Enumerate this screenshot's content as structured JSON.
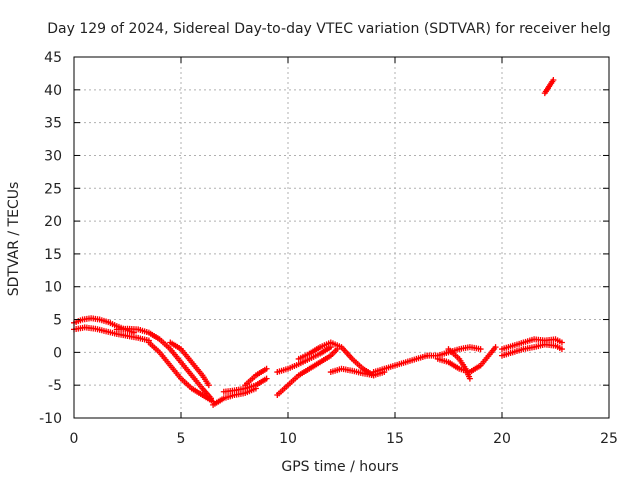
{
  "chart_data": {
    "type": "scatter",
    "title": "Day 129 of 2024, Sidereal Day-to-day VTEC variation (SDTVAR) for receiver helg",
    "xlabel": "GPS time / hours",
    "ylabel": "SDTVAR / TECUs",
    "xlim": [
      0,
      25
    ],
    "ylim": [
      -10,
      45
    ],
    "xticks": [
      0,
      5,
      10,
      15,
      20,
      25
    ],
    "yticks": [
      -10,
      -5,
      0,
      5,
      10,
      15,
      20,
      25,
      30,
      35,
      40,
      45
    ],
    "grid": true,
    "marker": "plus",
    "series": [
      {
        "name": "SDTVAR",
        "color": "#ff0000",
        "tracks": [
          {
            "name": "track-1",
            "x": [
              0,
              0.4,
              0.8,
              1.2,
              1.6,
              2.0,
              2.4,
              2.8
            ],
            "y": [
              4.5,
              5.0,
              5.2,
              5.0,
              4.6,
              4.0,
              3.5,
              3.0
            ]
          },
          {
            "name": "track-2",
            "x": [
              0,
              0.5,
              1.0,
              1.5,
              2.0,
              2.5,
              3.0,
              3.5
            ],
            "y": [
              3.5,
              3.8,
              3.6,
              3.2,
              2.8,
              2.5,
              2.2,
              1.8
            ]
          },
          {
            "name": "track-3",
            "x": [
              2.0,
              2.5,
              3.0,
              3.5,
              4.0,
              4.5,
              5.0,
              5.5,
              6.0,
              6.4
            ],
            "y": [
              3.5,
              3.6,
              3.5,
              3.0,
              2.0,
              0.5,
              -1.5,
              -3.5,
              -5.5,
              -7.0
            ]
          },
          {
            "name": "track-4",
            "x": [
              3.5,
              4.0,
              4.5,
              5.0,
              5.5,
              6.0,
              6.5
            ],
            "y": [
              1.5,
              0.0,
              -2.0,
              -4.0,
              -5.5,
              -6.5,
              -7.5
            ]
          },
          {
            "name": "track-5",
            "x": [
              4.5,
              5.0,
              5.5,
              6.0,
              6.3
            ],
            "y": [
              1.5,
              0.5,
              -1.5,
              -3.5,
              -5.0
            ]
          },
          {
            "name": "track-6",
            "x": [
              6.5,
              7.0,
              7.5,
              8.0,
              8.5
            ],
            "y": [
              -8.0,
              -7.0,
              -6.5,
              -6.2,
              -5.5
            ]
          },
          {
            "name": "track-7",
            "x": [
              7.0,
              7.5,
              8.0,
              8.5,
              9.0
            ],
            "y": [
              -6.0,
              -5.8,
              -5.5,
              -5.0,
              -4.0
            ]
          },
          {
            "name": "track-8",
            "x": [
              8.0,
              8.5,
              9.0
            ],
            "y": [
              -5.0,
              -3.5,
              -2.5
            ]
          },
          {
            "name": "track-9",
            "x": [
              9.5,
              10.0,
              10.5,
              11.0,
              11.5,
              12.0,
              12.3
            ],
            "y": [
              -6.5,
              -5.0,
              -3.5,
              -2.5,
              -1.5,
              -0.5,
              0.5
            ]
          },
          {
            "name": "track-10",
            "x": [
              9.5,
              10.0,
              10.5,
              11.0,
              11.5,
              12.0
            ],
            "y": [
              -3.0,
              -2.5,
              -1.8,
              -1.0,
              -0.2,
              0.8
            ]
          },
          {
            "name": "track-11",
            "x": [
              10.5,
              11.0,
              11.5,
              12.0,
              12.5,
              13.0,
              13.5,
              14.0
            ],
            "y": [
              -1.0,
              -0.2,
              0.8,
              1.5,
              0.8,
              -1.0,
              -2.5,
              -3.5
            ]
          },
          {
            "name": "track-12",
            "x": [
              12.0,
              12.5,
              13.0,
              13.5,
              14.0,
              14.5
            ],
            "y": [
              -3.0,
              -2.5,
              -2.8,
              -3.2,
              -3.5,
              -3.0
            ]
          },
          {
            "name": "track-13",
            "x": [
              14.0,
              14.5,
              15.0,
              15.5,
              16.0,
              16.5
            ],
            "y": [
              -3.0,
              -2.5,
              -2.0,
              -1.5,
              -1.0,
              -0.5
            ]
          },
          {
            "name": "track-14",
            "x": [
              16.5,
              17.0,
              17.5,
              18.0,
              18.5,
              19.0
            ],
            "y": [
              -0.5,
              -0.5,
              0.0,
              0.5,
              0.8,
              0.5
            ]
          },
          {
            "name": "track-15",
            "x": [
              17.0,
              17.5,
              18.0,
              18.5,
              19.0,
              19.5,
              19.7
            ],
            "y": [
              -1.0,
              -1.5,
              -2.5,
              -3.0,
              -2.0,
              0.0,
              0.8
            ]
          },
          {
            "name": "track-16",
            "x": [
              17.5,
              18.0,
              18.3,
              18.5
            ],
            "y": [
              0.5,
              -1.0,
              -2.5,
              -4.0
            ]
          },
          {
            "name": "track-17",
            "x": [
              20.0,
              20.5,
              21.0,
              21.5,
              22.0,
              22.5,
              22.8
            ],
            "y": [
              0.5,
              1.0,
              1.5,
              2.0,
              1.8,
              2.0,
              1.5
            ]
          },
          {
            "name": "track-18",
            "x": [
              20.0,
              20.5,
              21.0,
              21.5,
              22.0,
              22.5,
              22.8
            ],
            "y": [
              -0.5,
              0.0,
              0.5,
              0.8,
              1.2,
              1.0,
              0.5
            ]
          },
          {
            "name": "track-19",
            "x": [
              22.0,
              22.2,
              22.4
            ],
            "y": [
              39.5,
              40.5,
              41.5
            ]
          }
        ]
      }
    ]
  }
}
